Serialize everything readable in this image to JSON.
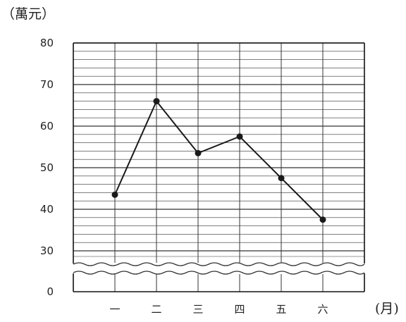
{
  "chart_data": {
    "type": "line",
    "categories": [
      "一",
      "二",
      "三",
      "四",
      "五",
      "六"
    ],
    "series": [
      {
        "values": [
          43.5,
          66,
          53.5,
          57.5,
          47.5,
          37.5
        ]
      }
    ],
    "title": "",
    "ylabel": "（萬元）",
    "xlabel": "(月)",
    "ylim": [
      0,
      80
    ],
    "y_axis_break": [
      0,
      30
    ],
    "yticks": [
      0,
      30,
      40,
      50,
      60,
      70,
      80
    ],
    "ytick_labels": [
      "0",
      "30",
      "40",
      "50",
      "60",
      "70",
      "80"
    ],
    "grid": true,
    "minor_grid_step": 2,
    "line_color": "#1a1a1a",
    "grid_color": "#333333"
  }
}
